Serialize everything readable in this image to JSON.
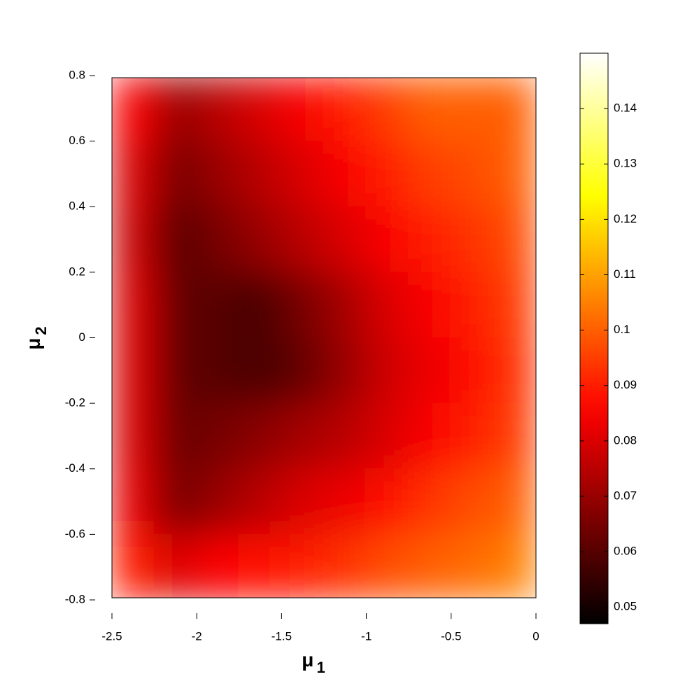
{
  "chart_data": {
    "type": "heatmap",
    "xlabel": {
      "symbol": "μ",
      "subscript": "1"
    },
    "ylabel": {
      "symbol": "μ",
      "subscript": "2"
    },
    "x": [
      -2.375,
      -2.125,
      -1.875,
      -1.625,
      -1.375,
      -1.125,
      -0.875,
      -0.625,
      -0.375,
      -0.125
    ],
    "y": [
      0.7,
      0.5,
      0.3,
      0.1,
      -0.1,
      -0.3,
      -0.5,
      -0.7
    ],
    "z": [
      [
        0.085,
        0.07,
        0.075,
        0.08,
        0.085,
        0.09,
        0.095,
        0.1,
        0.1,
        0.1
      ],
      [
        0.08,
        0.065,
        0.07,
        0.075,
        0.08,
        0.085,
        0.09,
        0.095,
        0.097,
        0.1
      ],
      [
        0.078,
        0.06,
        0.065,
        0.07,
        0.075,
        0.08,
        0.085,
        0.09,
        0.093,
        0.097
      ],
      [
        0.08,
        0.062,
        0.06,
        0.058,
        0.065,
        0.072,
        0.08,
        0.085,
        0.09,
        0.095
      ],
      [
        0.08,
        0.062,
        0.06,
        0.058,
        0.062,
        0.07,
        0.078,
        0.083,
        0.088,
        0.093
      ],
      [
        0.08,
        0.063,
        0.065,
        0.068,
        0.072,
        0.075,
        0.08,
        0.085,
        0.09,
        0.095
      ],
      [
        0.082,
        0.065,
        0.07,
        0.075,
        0.08,
        0.083,
        0.088,
        0.093,
        0.097,
        0.1
      ],
      [
        0.09,
        0.08,
        0.085,
        0.088,
        0.09,
        0.093,
        0.097,
        0.1,
        0.102,
        0.105
      ]
    ],
    "colormap": "hot",
    "xlim": [
      -2.5,
      0
    ],
    "xticks": [
      -2.5,
      -2,
      -1.5,
      -1,
      -0.5,
      0
    ],
    "ylim": [
      -0.8,
      0.8
    ],
    "yticks": [
      0.8,
      0.6,
      0.4,
      0.2,
      0,
      -0.2,
      -0.4,
      -0.6,
      -0.8
    ],
    "clim": [
      0.047,
      0.15
    ],
    "cticks": [
      0.05,
      0.06,
      0.07,
      0.08,
      0.09,
      0.1,
      0.11,
      0.12,
      0.13,
      0.14
    ]
  }
}
